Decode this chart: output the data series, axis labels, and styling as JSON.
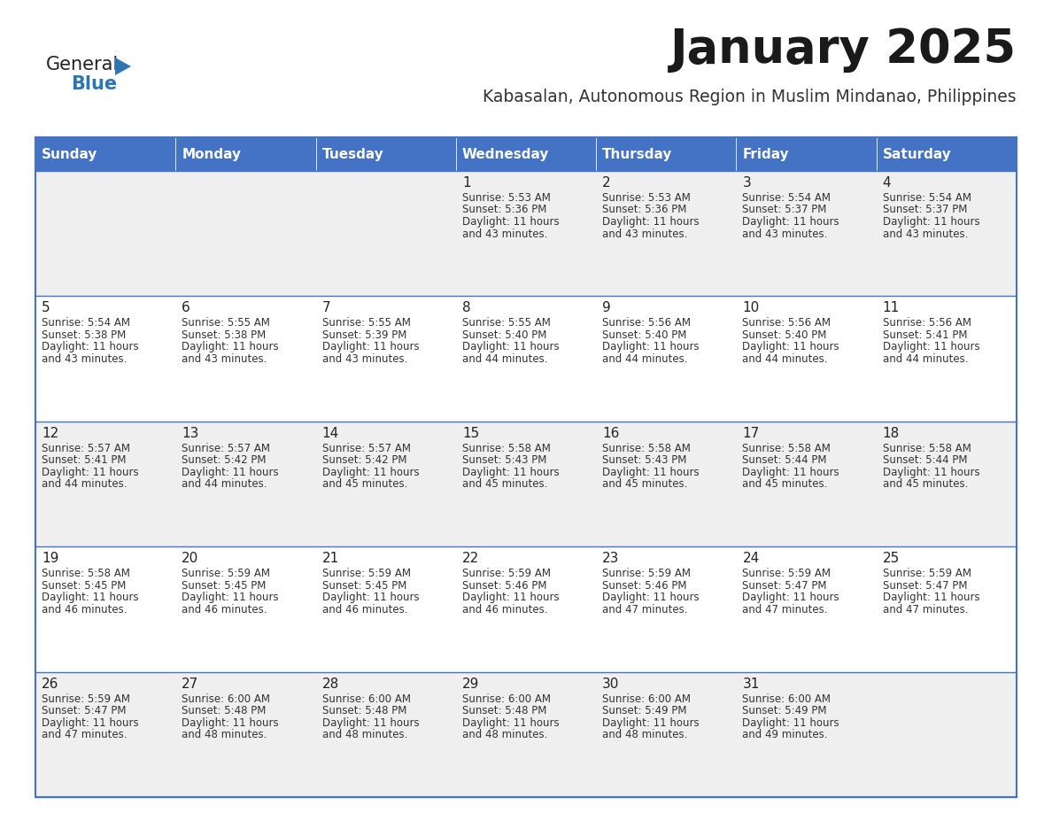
{
  "title": "January 2025",
  "subtitle": "Kabasalan, Autonomous Region in Muslim Mindanao, Philippines",
  "header_bg_color": "#4472C4",
  "header_text_color": "#FFFFFF",
  "cell_bg_even": "#EFEFEF",
  "cell_bg_odd": "#FFFFFF",
  "border_color": "#4472C4",
  "day_names": [
    "Sunday",
    "Monday",
    "Tuesday",
    "Wednesday",
    "Thursday",
    "Friday",
    "Saturday"
  ],
  "title_color": "#1a1a1a",
  "subtitle_color": "#333333",
  "day_num_color": "#222222",
  "cell_text_color": "#333333",
  "logo_general_color": "#222222",
  "logo_blue_color": "#2E75B6",
  "logo_triangle_color": "#2E75B6",
  "calendar": [
    [
      {
        "day": "",
        "sunrise": "",
        "sunset": "",
        "daylight_min": ""
      },
      {
        "day": "",
        "sunrise": "",
        "sunset": "",
        "daylight_min": ""
      },
      {
        "day": "",
        "sunrise": "",
        "sunset": "",
        "daylight_min": ""
      },
      {
        "day": "1",
        "sunrise": "5:53 AM",
        "sunset": "5:36 PM",
        "daylight_min": "43 minutes."
      },
      {
        "day": "2",
        "sunrise": "5:53 AM",
        "sunset": "5:36 PM",
        "daylight_min": "43 minutes."
      },
      {
        "day": "3",
        "sunrise": "5:54 AM",
        "sunset": "5:37 PM",
        "daylight_min": "43 minutes."
      },
      {
        "day": "4",
        "sunrise": "5:54 AM",
        "sunset": "5:37 PM",
        "daylight_min": "43 minutes."
      }
    ],
    [
      {
        "day": "5",
        "sunrise": "5:54 AM",
        "sunset": "5:38 PM",
        "daylight_min": "43 minutes."
      },
      {
        "day": "6",
        "sunrise": "5:55 AM",
        "sunset": "5:38 PM",
        "daylight_min": "43 minutes."
      },
      {
        "day": "7",
        "sunrise": "5:55 AM",
        "sunset": "5:39 PM",
        "daylight_min": "43 minutes."
      },
      {
        "day": "8",
        "sunrise": "5:55 AM",
        "sunset": "5:40 PM",
        "daylight_min": "44 minutes."
      },
      {
        "day": "9",
        "sunrise": "5:56 AM",
        "sunset": "5:40 PM",
        "daylight_min": "44 minutes."
      },
      {
        "day": "10",
        "sunrise": "5:56 AM",
        "sunset": "5:40 PM",
        "daylight_min": "44 minutes."
      },
      {
        "day": "11",
        "sunrise": "5:56 AM",
        "sunset": "5:41 PM",
        "daylight_min": "44 minutes."
      }
    ],
    [
      {
        "day": "12",
        "sunrise": "5:57 AM",
        "sunset": "5:41 PM",
        "daylight_min": "44 minutes."
      },
      {
        "day": "13",
        "sunrise": "5:57 AM",
        "sunset": "5:42 PM",
        "daylight_min": "44 minutes."
      },
      {
        "day": "14",
        "sunrise": "5:57 AM",
        "sunset": "5:42 PM",
        "daylight_min": "45 minutes."
      },
      {
        "day": "15",
        "sunrise": "5:58 AM",
        "sunset": "5:43 PM",
        "daylight_min": "45 minutes."
      },
      {
        "day": "16",
        "sunrise": "5:58 AM",
        "sunset": "5:43 PM",
        "daylight_min": "45 minutes."
      },
      {
        "day": "17",
        "sunrise": "5:58 AM",
        "sunset": "5:44 PM",
        "daylight_min": "45 minutes."
      },
      {
        "day": "18",
        "sunrise": "5:58 AM",
        "sunset": "5:44 PM",
        "daylight_min": "45 minutes."
      }
    ],
    [
      {
        "day": "19",
        "sunrise": "5:58 AM",
        "sunset": "5:45 PM",
        "daylight_min": "46 minutes."
      },
      {
        "day": "20",
        "sunrise": "5:59 AM",
        "sunset": "5:45 PM",
        "daylight_min": "46 minutes."
      },
      {
        "day": "21",
        "sunrise": "5:59 AM",
        "sunset": "5:45 PM",
        "daylight_min": "46 minutes."
      },
      {
        "day": "22",
        "sunrise": "5:59 AM",
        "sunset": "5:46 PM",
        "daylight_min": "46 minutes."
      },
      {
        "day": "23",
        "sunrise": "5:59 AM",
        "sunset": "5:46 PM",
        "daylight_min": "47 minutes."
      },
      {
        "day": "24",
        "sunrise": "5:59 AM",
        "sunset": "5:47 PM",
        "daylight_min": "47 minutes."
      },
      {
        "day": "25",
        "sunrise": "5:59 AM",
        "sunset": "5:47 PM",
        "daylight_min": "47 minutes."
      }
    ],
    [
      {
        "day": "26",
        "sunrise": "5:59 AM",
        "sunset": "5:47 PM",
        "daylight_min": "47 minutes."
      },
      {
        "day": "27",
        "sunrise": "6:00 AM",
        "sunset": "5:48 PM",
        "daylight_min": "48 minutes."
      },
      {
        "day": "28",
        "sunrise": "6:00 AM",
        "sunset": "5:48 PM",
        "daylight_min": "48 minutes."
      },
      {
        "day": "29",
        "sunrise": "6:00 AM",
        "sunset": "5:48 PM",
        "daylight_min": "48 minutes."
      },
      {
        "day": "30",
        "sunrise": "6:00 AM",
        "sunset": "5:49 PM",
        "daylight_min": "48 minutes."
      },
      {
        "day": "31",
        "sunrise": "6:00 AM",
        "sunset": "5:49 PM",
        "daylight_min": "49 minutes."
      },
      {
        "day": "",
        "sunrise": "",
        "sunset": "",
        "daylight_min": ""
      }
    ]
  ]
}
